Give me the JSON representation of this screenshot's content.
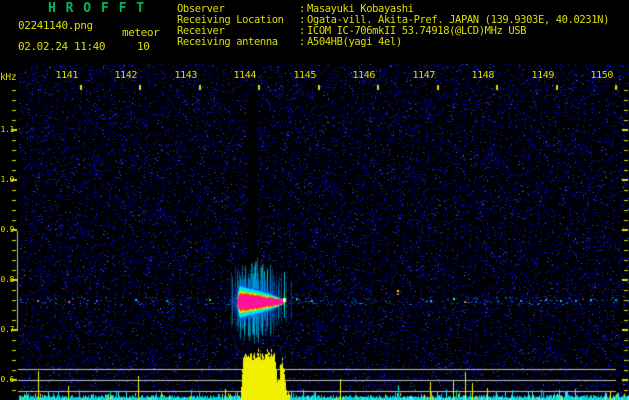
{
  "header": {
    "title": "H R O F F T",
    "filename": "02241140.png",
    "mode_label": "meteor",
    "timestamp": "02.02.24 11:40",
    "interval_min": "10",
    "info_rows": [
      {
        "label": "Observer",
        "sep": ":",
        "value": "Masayuki Kobayashi"
      },
      {
        "label": "Receiving Location",
        "sep": ":",
        "value": "Ogata-vill. Akita-Pref. JAPAN (139.9303E, 40.0231N)"
      },
      {
        "label": "Receiver",
        "sep": ":",
        "value": "ICOM IC-706mkII 53.74918(@LCD)MHz USB"
      },
      {
        "label": "Receiving antenna",
        "sep": ":",
        "value": "A504HB(yagi 4el)"
      }
    ]
  },
  "chart_data": {
    "type": "heatmap",
    "ylabel": "kHz",
    "y_tick_labels": [
      "1.1",
      "1.0",
      "0.9",
      "0.8",
      "0.7",
      "0.6"
    ],
    "y_range_khz": [
      0.56,
      1.18
    ],
    "x_tick_labels": [
      "1141",
      "1142",
      "1143",
      "1144",
      "1145",
      "1146",
      "1147",
      "1148",
      "1149",
      "1150"
    ],
    "features": {
      "meteor_echo": {
        "time_hhmm": "1144",
        "peak_freq_khz": 0.76
      },
      "carrier_band_khz": 0.76,
      "detection_band_khz": [
        0.7,
        0.9
      ],
      "level_reference_lines_khz": [
        0.62,
        0.6,
        0.58
      ]
    }
  },
  "colors": {
    "background": "#000000",
    "text_yellow": "#dede00",
    "title_green": "#00b85c",
    "axis_yellow": "#e0e000",
    "reference_gray": "#bcbcbc",
    "noise_blue": "#0000b0",
    "echo_core_magenta": "#ff10a0",
    "echo_hot_red": "#ff3010",
    "echo_fringe_yellow": "#ffe000",
    "echo_fringe_green": "#40ff40",
    "echo_halo_cyan": "#00e0ff",
    "meter_yellow": "#f0f000",
    "baseline_cyan": "#00d8d8"
  }
}
